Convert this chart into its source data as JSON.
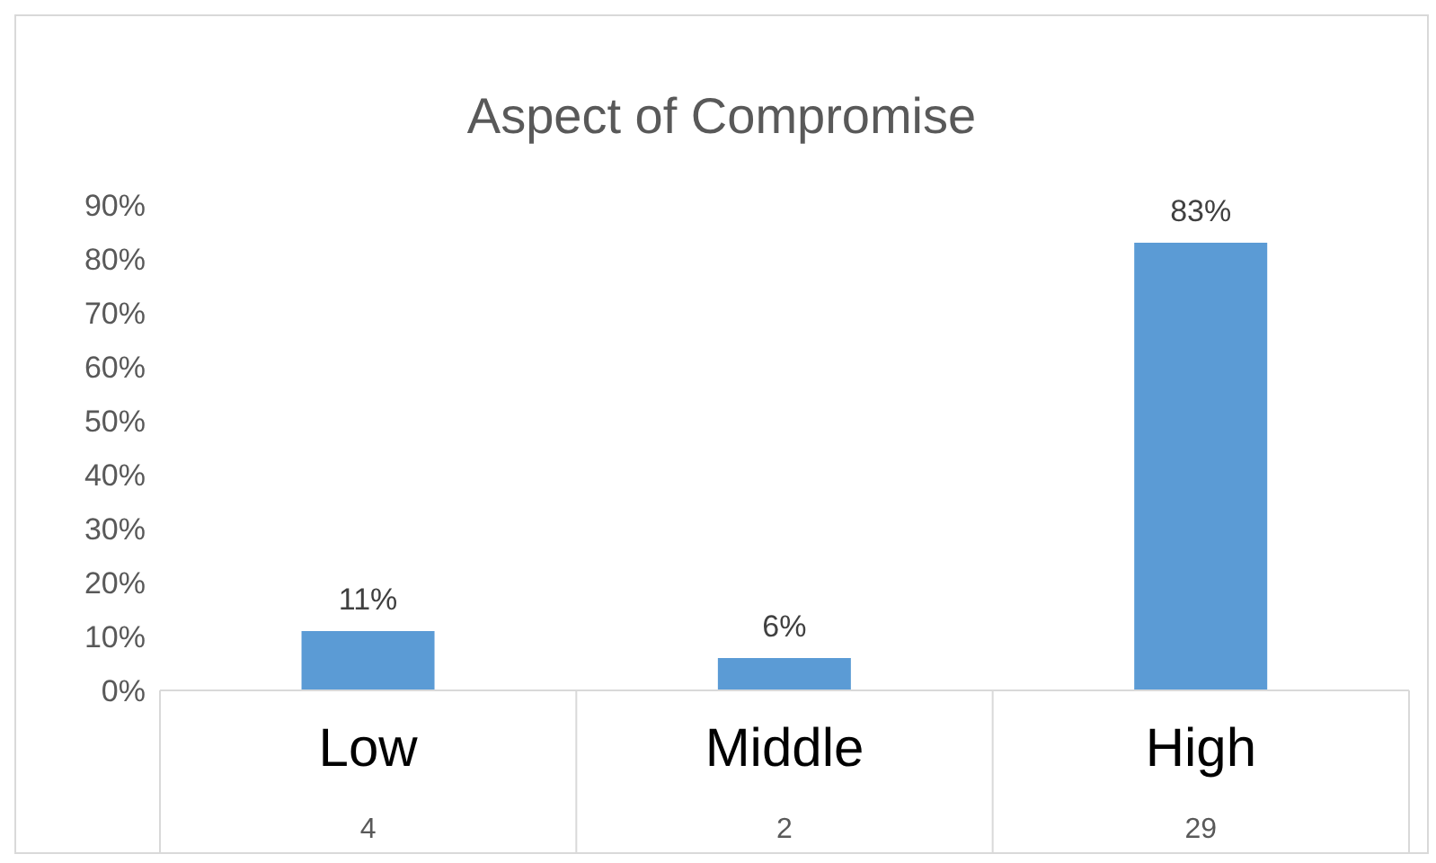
{
  "chart_data": {
    "type": "bar",
    "title": "Aspect of Compromise",
    "categories": [
      "Low",
      "Middle",
      "High"
    ],
    "values": [
      11,
      6,
      83
    ],
    "color": "#5b9bd5",
    "value_labels": [
      "11%",
      "6%",
      "83%"
    ],
    "ylim": [
      0,
      90
    ],
    "yticks": [
      {
        "value": 0,
        "label": "0%"
      },
      {
        "value": 10,
        "label": "10%"
      },
      {
        "value": 20,
        "label": "20%"
      },
      {
        "value": 30,
        "label": "30%"
      },
      {
        "value": 40,
        "label": "40%"
      },
      {
        "value": 50,
        "label": "50%"
      },
      {
        "value": 60,
        "label": "60%"
      },
      {
        "value": 70,
        "label": "70%"
      },
      {
        "value": 80,
        "label": "80%"
      },
      {
        "value": 90,
        "label": "90%"
      }
    ],
    "annotations": [
      "4",
      "2",
      "29"
    ],
    "grid": false,
    "legend": false
  }
}
